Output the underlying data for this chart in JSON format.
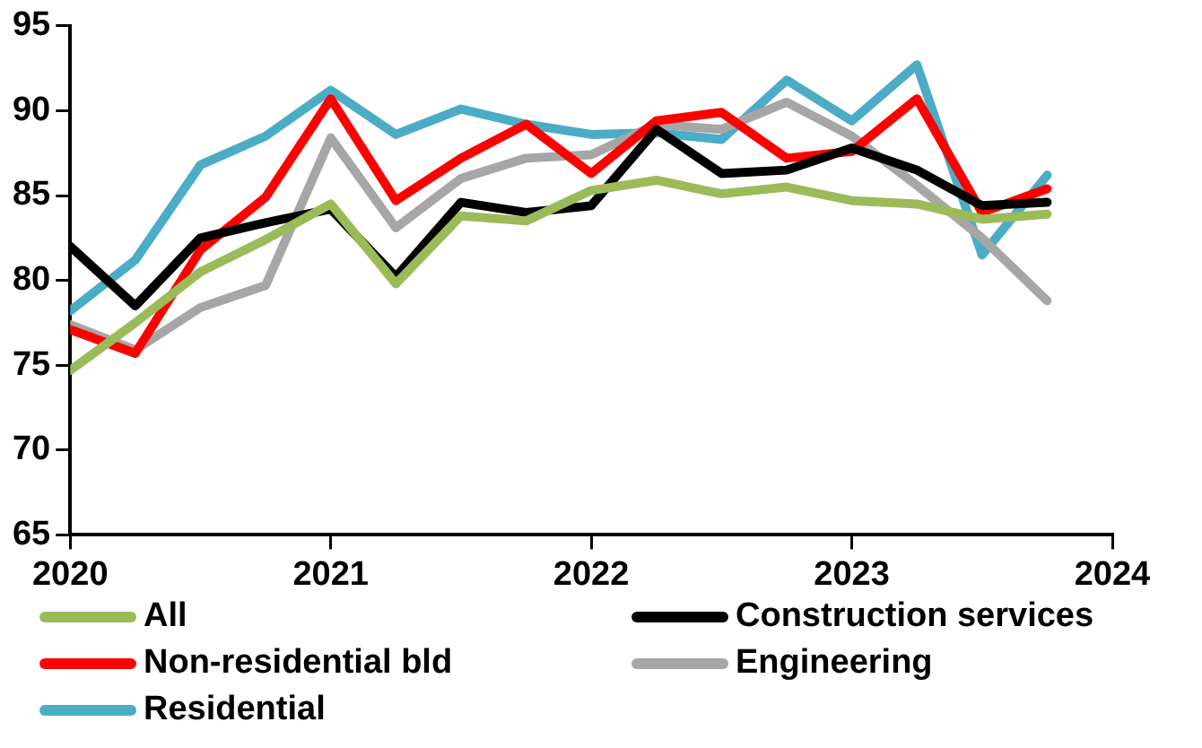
{
  "chart_data": {
    "type": "line",
    "x": [
      2020,
      2020.25,
      2020.5,
      2020.75,
      2021,
      2021.25,
      2021.5,
      2021.75,
      2022,
      2022.25,
      2022.5,
      2022.75,
      2023,
      2023.25,
      2023.5,
      2023.75
    ],
    "xlim": [
      2020,
      2024
    ],
    "xticks": [
      2020,
      2021,
      2022,
      2023,
      2024
    ],
    "ylim": [
      65,
      95
    ],
    "yticks": [
      65,
      70,
      75,
      80,
      85,
      90,
      95
    ],
    "grid": false,
    "legend": "bottom",
    "marker": "none",
    "line_style": "solid",
    "series": [
      {
        "name": "All",
        "color": "#9bbb59",
        "values": [
          74.7,
          77.5,
          80.5,
          82.4,
          84.5,
          79.8,
          83.8,
          83.5,
          85.3,
          85.9,
          85.1,
          85.5,
          84.7,
          84.5,
          83.6,
          83.9
        ]
      },
      {
        "name": "Construction services",
        "color": "#000000",
        "values": [
          82.0,
          78.5,
          82.5,
          83.4,
          84.2,
          80.2,
          84.6,
          84.0,
          84.4,
          88.9,
          86.3,
          86.5,
          87.8,
          86.5,
          84.4,
          84.6
        ]
      },
      {
        "name": "Non-residential bld",
        "color": "#ff0000",
        "values": [
          77.1,
          75.7,
          81.8,
          84.9,
          90.7,
          84.7,
          87.2,
          89.2,
          86.3,
          89.4,
          89.9,
          87.2,
          87.6,
          90.7,
          84.0,
          85.4
        ]
      },
      {
        "name": "Engineering",
        "color": "#a6a6a6",
        "values": [
          77.4,
          75.9,
          78.4,
          79.7,
          88.4,
          83.1,
          86.0,
          87.2,
          87.4,
          89.2,
          88.9,
          90.5,
          88.5,
          85.6,
          82.5,
          78.8
        ]
      },
      {
        "name": "Residential",
        "color": "#4bacc6",
        "values": [
          78.2,
          81.2,
          86.8,
          88.5,
          91.2,
          88.6,
          90.1,
          89.2,
          88.6,
          88.7,
          88.3,
          91.8,
          89.4,
          92.7,
          81.5,
          86.2
        ]
      }
    ]
  }
}
